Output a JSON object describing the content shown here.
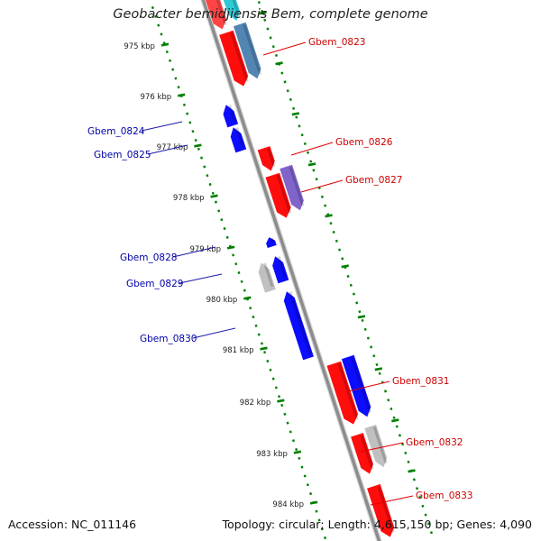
{
  "header": {
    "title": "Geobacter bemidjiensis Bem, complete genome"
  },
  "footer": {
    "accession": "Accession: NC_011146",
    "summary": "Topology: circular; Length: 4,615,150 bp; Genes: 4,090"
  },
  "colors": {
    "forward_strand": "#ff0000",
    "reverse_strand": "#0000ff",
    "backbone": "#8c8c8c",
    "tick": "#008000",
    "forward_label": "#cc0000",
    "reverse_label": "#0000aa"
  },
  "ruler": {
    "labels": [
      "975 kbp",
      "976 kbp",
      "977 kbp",
      "978 kbp",
      "979 kbp",
      "980 kbp",
      "981 kbp",
      "982 kbp",
      "983 kbp",
      "984 kbp"
    ]
  },
  "genes": [
    {
      "id": "Gbem_0823",
      "strand": "forward",
      "color": "#4a7fb0",
      "labeled": true
    },
    {
      "id": "Gbem_0824",
      "strand": "reverse",
      "color": "#0000ff",
      "labeled": true
    },
    {
      "id": "Gbem_0825",
      "strand": "reverse",
      "color": "#0000ff",
      "labeled": true
    },
    {
      "id": "Gbem_0826",
      "strand": "forward",
      "color": "#ff0000",
      "labeled": true
    },
    {
      "id": "Gbem_0827",
      "strand": "forward",
      "color": "#7b5cc8",
      "labeled": true
    },
    {
      "id": "Gbem_0828",
      "strand": "reverse",
      "color": "#0000ff",
      "labeled": true
    },
    {
      "id": "Gbem_0829",
      "strand": "reverse",
      "color": "#bdbdbd",
      "labeled": true
    },
    {
      "id": "Gbem_0830",
      "strand": "reverse",
      "color": "#0000ff",
      "labeled": true
    },
    {
      "id": "Gbem_0831",
      "strand": "forward",
      "color": "#0000ff",
      "labeled": true
    },
    {
      "id": "Gbem_0832",
      "strand": "forward",
      "color": "#bdbdbd",
      "labeled": true
    },
    {
      "id": "Gbem_0833",
      "strand": "forward",
      "color": "#ff0000",
      "labeled": true
    }
  ]
}
